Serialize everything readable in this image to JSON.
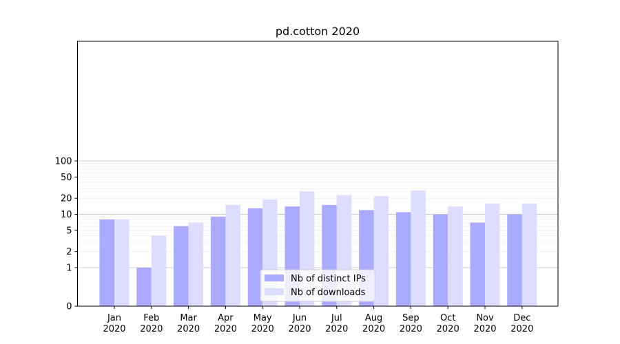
{
  "chart_data": {
    "type": "bar",
    "title": "pd.cotton 2020",
    "xlabel": "",
    "ylabel": "",
    "y_scale": "symlog (log above 1)",
    "ylim": [
      0,
      130
    ],
    "yticks": [
      0,
      1,
      2,
      5,
      10,
      20,
      50,
      100
    ],
    "ytick_labels": [
      "0",
      "1",
      "2",
      "5",
      "10",
      "20",
      "50",
      "100"
    ],
    "categories": [
      "Jan\n2020",
      "Feb\n2020",
      "Mar\n2020",
      "Apr\n2020",
      "May\n2020",
      "Jun\n2020",
      "Jul\n2020",
      "Aug\n2020",
      "Sep\n2020",
      "Oct\n2020",
      "Nov\n2020",
      "Dec\n2020"
    ],
    "series": [
      {
        "name": "Nb of distinct IPs",
        "color": "#aaaaff",
        "values": [
          8,
          1,
          6,
          9,
          13,
          14,
          15,
          12,
          11,
          10,
          7,
          10
        ]
      },
      {
        "name": "Nb of downloads",
        "color": "#ddddff",
        "values": [
          8,
          4,
          7,
          15,
          19,
          27,
          23,
          22,
          28,
          14,
          16,
          16
        ]
      }
    ],
    "grid": true,
    "legend_position": "bottom-center"
  }
}
